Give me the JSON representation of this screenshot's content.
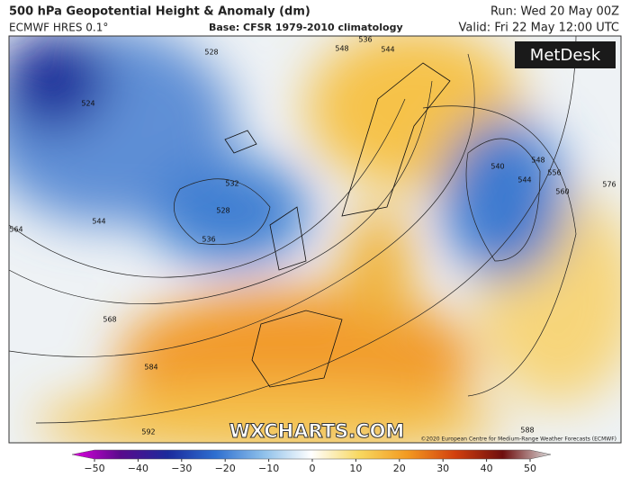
{
  "header": {
    "title": "500 hPa Geopotential Height & Anomaly (dm)",
    "model": "ECMWF HRES 0.1°",
    "base": "Base: CFSR 1979-2010 climatology",
    "run": "Run: Wed 20 May 00Z",
    "valid": "Valid: Fri 22 May 12:00 UTC"
  },
  "map": {
    "contour_labels": [
      532,
      528,
      536,
      544,
      564,
      568,
      584,
      592,
      548,
      544,
      536,
      540,
      544,
      548,
      556,
      560,
      576,
      588,
      528,
      524
    ],
    "watermark": "WXCHARTS.COM",
    "copyright": "©2020 European Centre for Medium-Range Weather Forecasts (ECMWF)",
    "logo": "MetDesk"
  },
  "colorbar": {
    "range": [
      -50,
      50
    ],
    "ticks": [
      {
        "value": -50,
        "label": "−50"
      },
      {
        "value": -40,
        "label": "−40"
      },
      {
        "value": -30,
        "label": "−30"
      },
      {
        "value": -20,
        "label": "−20"
      },
      {
        "value": -10,
        "label": "−10"
      },
      0,
      10,
      20,
      30,
      40,
      50
    ]
  }
}
